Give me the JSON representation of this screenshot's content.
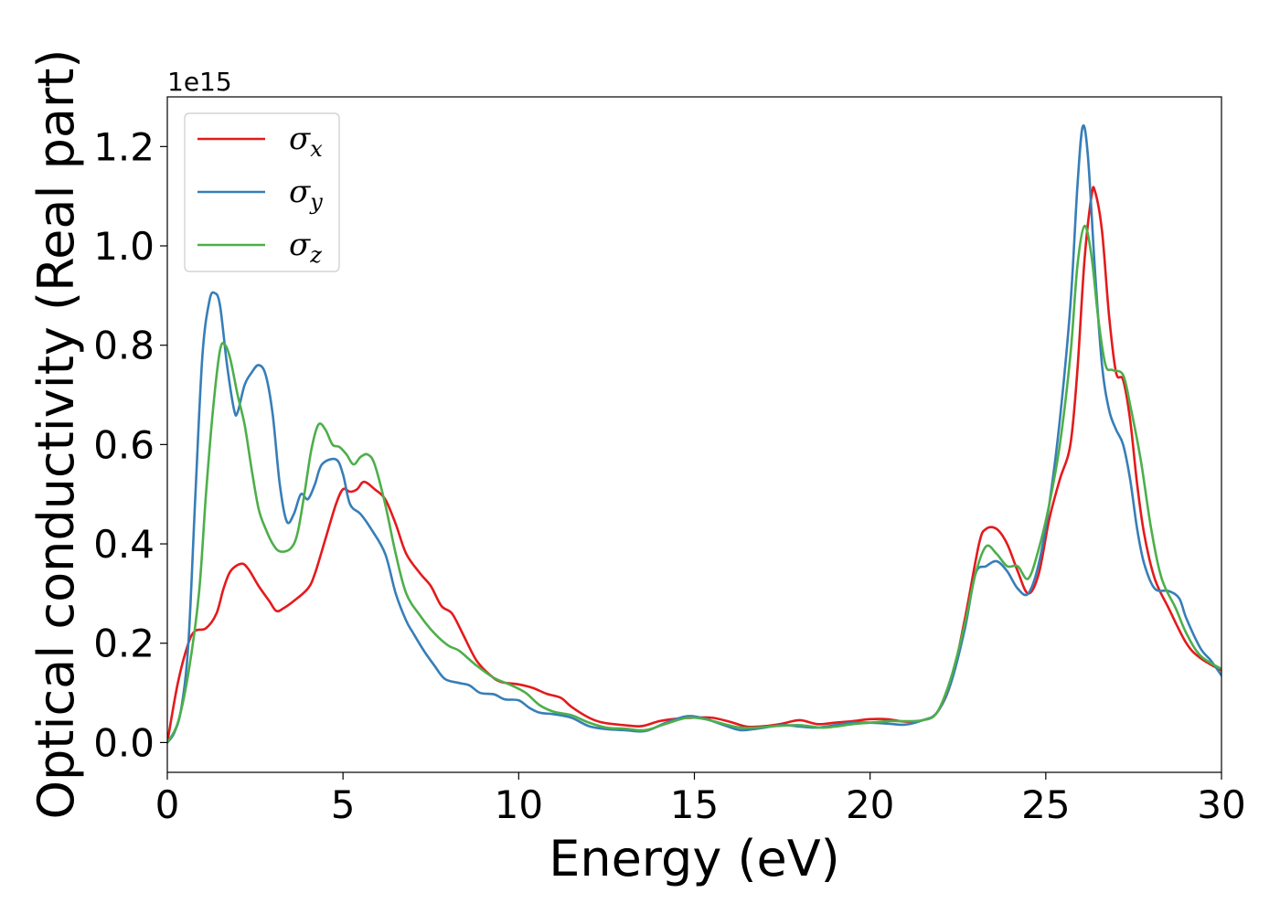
{
  "chart_data": {
    "type": "line",
    "xlabel": "Energy (eV)",
    "ylabel": "Optical conductivity (Real part)",
    "y_offset_text": "1e15",
    "xlim": [
      0,
      30
    ],
    "ylim": [
      -0.06,
      1.3
    ],
    "x_ticks": [
      "0",
      "5",
      "10",
      "15",
      "20",
      "25",
      "30"
    ],
    "y_ticks": [
      "0.0",
      "0.2",
      "0.4",
      "0.6",
      "0.8",
      "1.0",
      "1.2"
    ],
    "grid": false,
    "legend_position": "upper-left",
    "series": [
      {
        "name": "σx",
        "legend_symbol": "σ",
        "legend_subscript": "x",
        "color": "#e41a1c",
        "points": [
          [
            0,
            0
          ],
          [
            0.3,
            0.12
          ],
          [
            0.6,
            0.2
          ],
          [
            0.8,
            0.225
          ],
          [
            1.1,
            0.23
          ],
          [
            1.4,
            0.26
          ],
          [
            1.6,
            0.31
          ],
          [
            1.8,
            0.345
          ],
          [
            2.1,
            0.36
          ],
          [
            2.3,
            0.35
          ],
          [
            2.6,
            0.315
          ],
          [
            2.9,
            0.285
          ],
          [
            3.1,
            0.265
          ],
          [
            3.3,
            0.27
          ],
          [
            3.6,
            0.285
          ],
          [
            4.0,
            0.31
          ],
          [
            4.2,
            0.34
          ],
          [
            4.5,
            0.41
          ],
          [
            4.8,
            0.48
          ],
          [
            5.0,
            0.51
          ],
          [
            5.2,
            0.505
          ],
          [
            5.4,
            0.51
          ],
          [
            5.6,
            0.525
          ],
          [
            5.9,
            0.51
          ],
          [
            6.2,
            0.49
          ],
          [
            6.5,
            0.44
          ],
          [
            6.8,
            0.38
          ],
          [
            7.2,
            0.34
          ],
          [
            7.5,
            0.315
          ],
          [
            7.8,
            0.275
          ],
          [
            8.1,
            0.26
          ],
          [
            8.4,
            0.22
          ],
          [
            8.8,
            0.165
          ],
          [
            9.2,
            0.135
          ],
          [
            9.5,
            0.122
          ],
          [
            10.0,
            0.117
          ],
          [
            10.4,
            0.11
          ],
          [
            10.8,
            0.098
          ],
          [
            11.2,
            0.09
          ],
          [
            11.5,
            0.072
          ],
          [
            12.0,
            0.05
          ],
          [
            12.4,
            0.04
          ],
          [
            13.0,
            0.035
          ],
          [
            13.5,
            0.033
          ],
          [
            14.0,
            0.043
          ],
          [
            14.5,
            0.048
          ],
          [
            15.0,
            0.05
          ],
          [
            15.5,
            0.05
          ],
          [
            16.0,
            0.042
          ],
          [
            16.5,
            0.032
          ],
          [
            17.0,
            0.033
          ],
          [
            17.5,
            0.038
          ],
          [
            18.0,
            0.045
          ],
          [
            18.5,
            0.037
          ],
          [
            19.0,
            0.04
          ],
          [
            19.5,
            0.043
          ],
          [
            20.0,
            0.047
          ],
          [
            20.5,
            0.047
          ],
          [
            21.0,
            0.042
          ],
          [
            21.5,
            0.045
          ],
          [
            21.9,
            0.06
          ],
          [
            22.3,
            0.12
          ],
          [
            22.7,
            0.25
          ],
          [
            23.1,
            0.4
          ],
          [
            23.3,
            0.43
          ],
          [
            23.6,
            0.43
          ],
          [
            23.9,
            0.4
          ],
          [
            24.2,
            0.345
          ],
          [
            24.5,
            0.3
          ],
          [
            24.8,
            0.34
          ],
          [
            25.1,
            0.45
          ],
          [
            25.4,
            0.53
          ],
          [
            25.7,
            0.6
          ],
          [
            25.9,
            0.75
          ],
          [
            26.1,
            0.97
          ],
          [
            26.3,
            1.1
          ],
          [
            26.4,
            1.11
          ],
          [
            26.6,
            1.03
          ],
          [
            26.8,
            0.86
          ],
          [
            27.0,
            0.745
          ],
          [
            27.2,
            0.73
          ],
          [
            27.4,
            0.65
          ],
          [
            27.6,
            0.52
          ],
          [
            27.8,
            0.42
          ],
          [
            28.1,
            0.33
          ],
          [
            28.5,
            0.27
          ],
          [
            29.0,
            0.2
          ],
          [
            29.4,
            0.17
          ],
          [
            30.0,
            0.145
          ]
        ]
      },
      {
        "name": "σy",
        "legend_symbol": "σ",
        "legend_subscript": "y",
        "color": "#377eb8",
        "points": [
          [
            0,
            0
          ],
          [
            0.2,
            0.02
          ],
          [
            0.4,
            0.07
          ],
          [
            0.6,
            0.2
          ],
          [
            0.8,
            0.5
          ],
          [
            1.0,
            0.78
          ],
          [
            1.2,
            0.89
          ],
          [
            1.35,
            0.905
          ],
          [
            1.5,
            0.88
          ],
          [
            1.7,
            0.76
          ],
          [
            1.9,
            0.67
          ],
          [
            2.0,
            0.665
          ],
          [
            2.2,
            0.72
          ],
          [
            2.4,
            0.745
          ],
          [
            2.6,
            0.76
          ],
          [
            2.8,
            0.74
          ],
          [
            3.0,
            0.66
          ],
          [
            3.2,
            0.52
          ],
          [
            3.4,
            0.445
          ],
          [
            3.6,
            0.46
          ],
          [
            3.8,
            0.5
          ],
          [
            4.0,
            0.49
          ],
          [
            4.2,
            0.52
          ],
          [
            4.4,
            0.56
          ],
          [
            4.8,
            0.57
          ],
          [
            5.0,
            0.54
          ],
          [
            5.2,
            0.48
          ],
          [
            5.5,
            0.46
          ],
          [
            5.8,
            0.43
          ],
          [
            6.2,
            0.38
          ],
          [
            6.5,
            0.3
          ],
          [
            6.8,
            0.245
          ],
          [
            7.0,
            0.22
          ],
          [
            7.3,
            0.185
          ],
          [
            7.6,
            0.155
          ],
          [
            7.9,
            0.128
          ],
          [
            8.3,
            0.12
          ],
          [
            8.6,
            0.115
          ],
          [
            8.9,
            0.1
          ],
          [
            9.3,
            0.097
          ],
          [
            9.6,
            0.087
          ],
          [
            10.0,
            0.085
          ],
          [
            10.3,
            0.07
          ],
          [
            10.6,
            0.06
          ],
          [
            11.0,
            0.057
          ],
          [
            11.5,
            0.05
          ],
          [
            12.0,
            0.033
          ],
          [
            12.5,
            0.027
          ],
          [
            13.0,
            0.025
          ],
          [
            13.6,
            0.023
          ],
          [
            14.2,
            0.04
          ],
          [
            14.8,
            0.053
          ],
          [
            15.3,
            0.048
          ],
          [
            15.8,
            0.036
          ],
          [
            16.3,
            0.025
          ],
          [
            16.8,
            0.028
          ],
          [
            17.5,
            0.035
          ],
          [
            18.0,
            0.032
          ],
          [
            18.5,
            0.03
          ],
          [
            19.0,
            0.035
          ],
          [
            19.5,
            0.04
          ],
          [
            20.0,
            0.04
          ],
          [
            20.5,
            0.038
          ],
          [
            21.0,
            0.036
          ],
          [
            21.5,
            0.045
          ],
          [
            21.9,
            0.06
          ],
          [
            22.3,
            0.12
          ],
          [
            22.7,
            0.23
          ],
          [
            23.0,
            0.34
          ],
          [
            23.3,
            0.355
          ],
          [
            23.6,
            0.365
          ],
          [
            23.9,
            0.345
          ],
          [
            24.2,
            0.31
          ],
          [
            24.5,
            0.3
          ],
          [
            24.8,
            0.36
          ],
          [
            25.1,
            0.48
          ],
          [
            25.4,
            0.65
          ],
          [
            25.7,
            0.88
          ],
          [
            25.9,
            1.12
          ],
          [
            26.05,
            1.24
          ],
          [
            26.2,
            1.18
          ],
          [
            26.4,
            0.95
          ],
          [
            26.6,
            0.76
          ],
          [
            26.8,
            0.67
          ],
          [
            27.0,
            0.63
          ],
          [
            27.2,
            0.6
          ],
          [
            27.4,
            0.53
          ],
          [
            27.6,
            0.43
          ],
          [
            27.8,
            0.36
          ],
          [
            28.1,
            0.31
          ],
          [
            28.5,
            0.305
          ],
          [
            28.8,
            0.29
          ],
          [
            29.0,
            0.25
          ],
          [
            29.4,
            0.19
          ],
          [
            29.7,
            0.165
          ],
          [
            30.0,
            0.135
          ]
        ]
      },
      {
        "name": "σz",
        "legend_symbol": "σ",
        "legend_subscript": "z",
        "color": "#4daf4a",
        "points": [
          [
            0,
            0
          ],
          [
            0.3,
            0.04
          ],
          [
            0.6,
            0.14
          ],
          [
            0.9,
            0.3
          ],
          [
            1.1,
            0.5
          ],
          [
            1.3,
            0.67
          ],
          [
            1.5,
            0.79
          ],
          [
            1.65,
            0.8
          ],
          [
            1.8,
            0.77
          ],
          [
            2.0,
            0.7
          ],
          [
            2.2,
            0.64
          ],
          [
            2.4,
            0.55
          ],
          [
            2.6,
            0.47
          ],
          [
            2.8,
            0.43
          ],
          [
            3.0,
            0.4
          ],
          [
            3.2,
            0.385
          ],
          [
            3.5,
            0.39
          ],
          [
            3.7,
            0.42
          ],
          [
            3.9,
            0.5
          ],
          [
            4.1,
            0.59
          ],
          [
            4.3,
            0.64
          ],
          [
            4.5,
            0.63
          ],
          [
            4.7,
            0.6
          ],
          [
            4.9,
            0.595
          ],
          [
            5.1,
            0.58
          ],
          [
            5.3,
            0.56
          ],
          [
            5.5,
            0.575
          ],
          [
            5.7,
            0.58
          ],
          [
            5.9,
            0.56
          ],
          [
            6.2,
            0.48
          ],
          [
            6.5,
            0.38
          ],
          [
            6.8,
            0.3
          ],
          [
            7.2,
            0.255
          ],
          [
            7.6,
            0.22
          ],
          [
            8.0,
            0.195
          ],
          [
            8.3,
            0.185
          ],
          [
            8.8,
            0.155
          ],
          [
            9.3,
            0.13
          ],
          [
            9.8,
            0.115
          ],
          [
            10.2,
            0.1
          ],
          [
            10.6,
            0.075
          ],
          [
            11.0,
            0.062
          ],
          [
            11.5,
            0.055
          ],
          [
            12.0,
            0.04
          ],
          [
            12.5,
            0.03
          ],
          [
            13.0,
            0.028
          ],
          [
            13.6,
            0.025
          ],
          [
            14.2,
            0.038
          ],
          [
            14.8,
            0.05
          ],
          [
            15.3,
            0.047
          ],
          [
            15.8,
            0.038
          ],
          [
            16.3,
            0.03
          ],
          [
            16.8,
            0.03
          ],
          [
            17.3,
            0.033
          ],
          [
            18.0,
            0.035
          ],
          [
            18.6,
            0.03
          ],
          [
            19.0,
            0.032
          ],
          [
            19.5,
            0.037
          ],
          [
            20.0,
            0.04
          ],
          [
            20.5,
            0.043
          ],
          [
            21.0,
            0.043
          ],
          [
            21.5,
            0.045
          ],
          [
            21.9,
            0.06
          ],
          [
            22.3,
            0.13
          ],
          [
            22.7,
            0.24
          ],
          [
            23.0,
            0.34
          ],
          [
            23.3,
            0.395
          ],
          [
            23.6,
            0.38
          ],
          [
            23.9,
            0.355
          ],
          [
            24.2,
            0.355
          ],
          [
            24.5,
            0.33
          ],
          [
            24.8,
            0.39
          ],
          [
            25.1,
            0.48
          ],
          [
            25.4,
            0.6
          ],
          [
            25.7,
            0.78
          ],
          [
            25.9,
            0.96
          ],
          [
            26.1,
            1.04
          ],
          [
            26.3,
            0.98
          ],
          [
            26.5,
            0.85
          ],
          [
            26.7,
            0.76
          ],
          [
            26.9,
            0.75
          ],
          [
            27.2,
            0.74
          ],
          [
            27.4,
            0.68
          ],
          [
            27.7,
            0.57
          ],
          [
            28.0,
            0.43
          ],
          [
            28.3,
            0.33
          ],
          [
            28.7,
            0.27
          ],
          [
            29.0,
            0.22
          ],
          [
            29.4,
            0.175
          ],
          [
            30.0,
            0.148
          ]
        ]
      }
    ]
  }
}
